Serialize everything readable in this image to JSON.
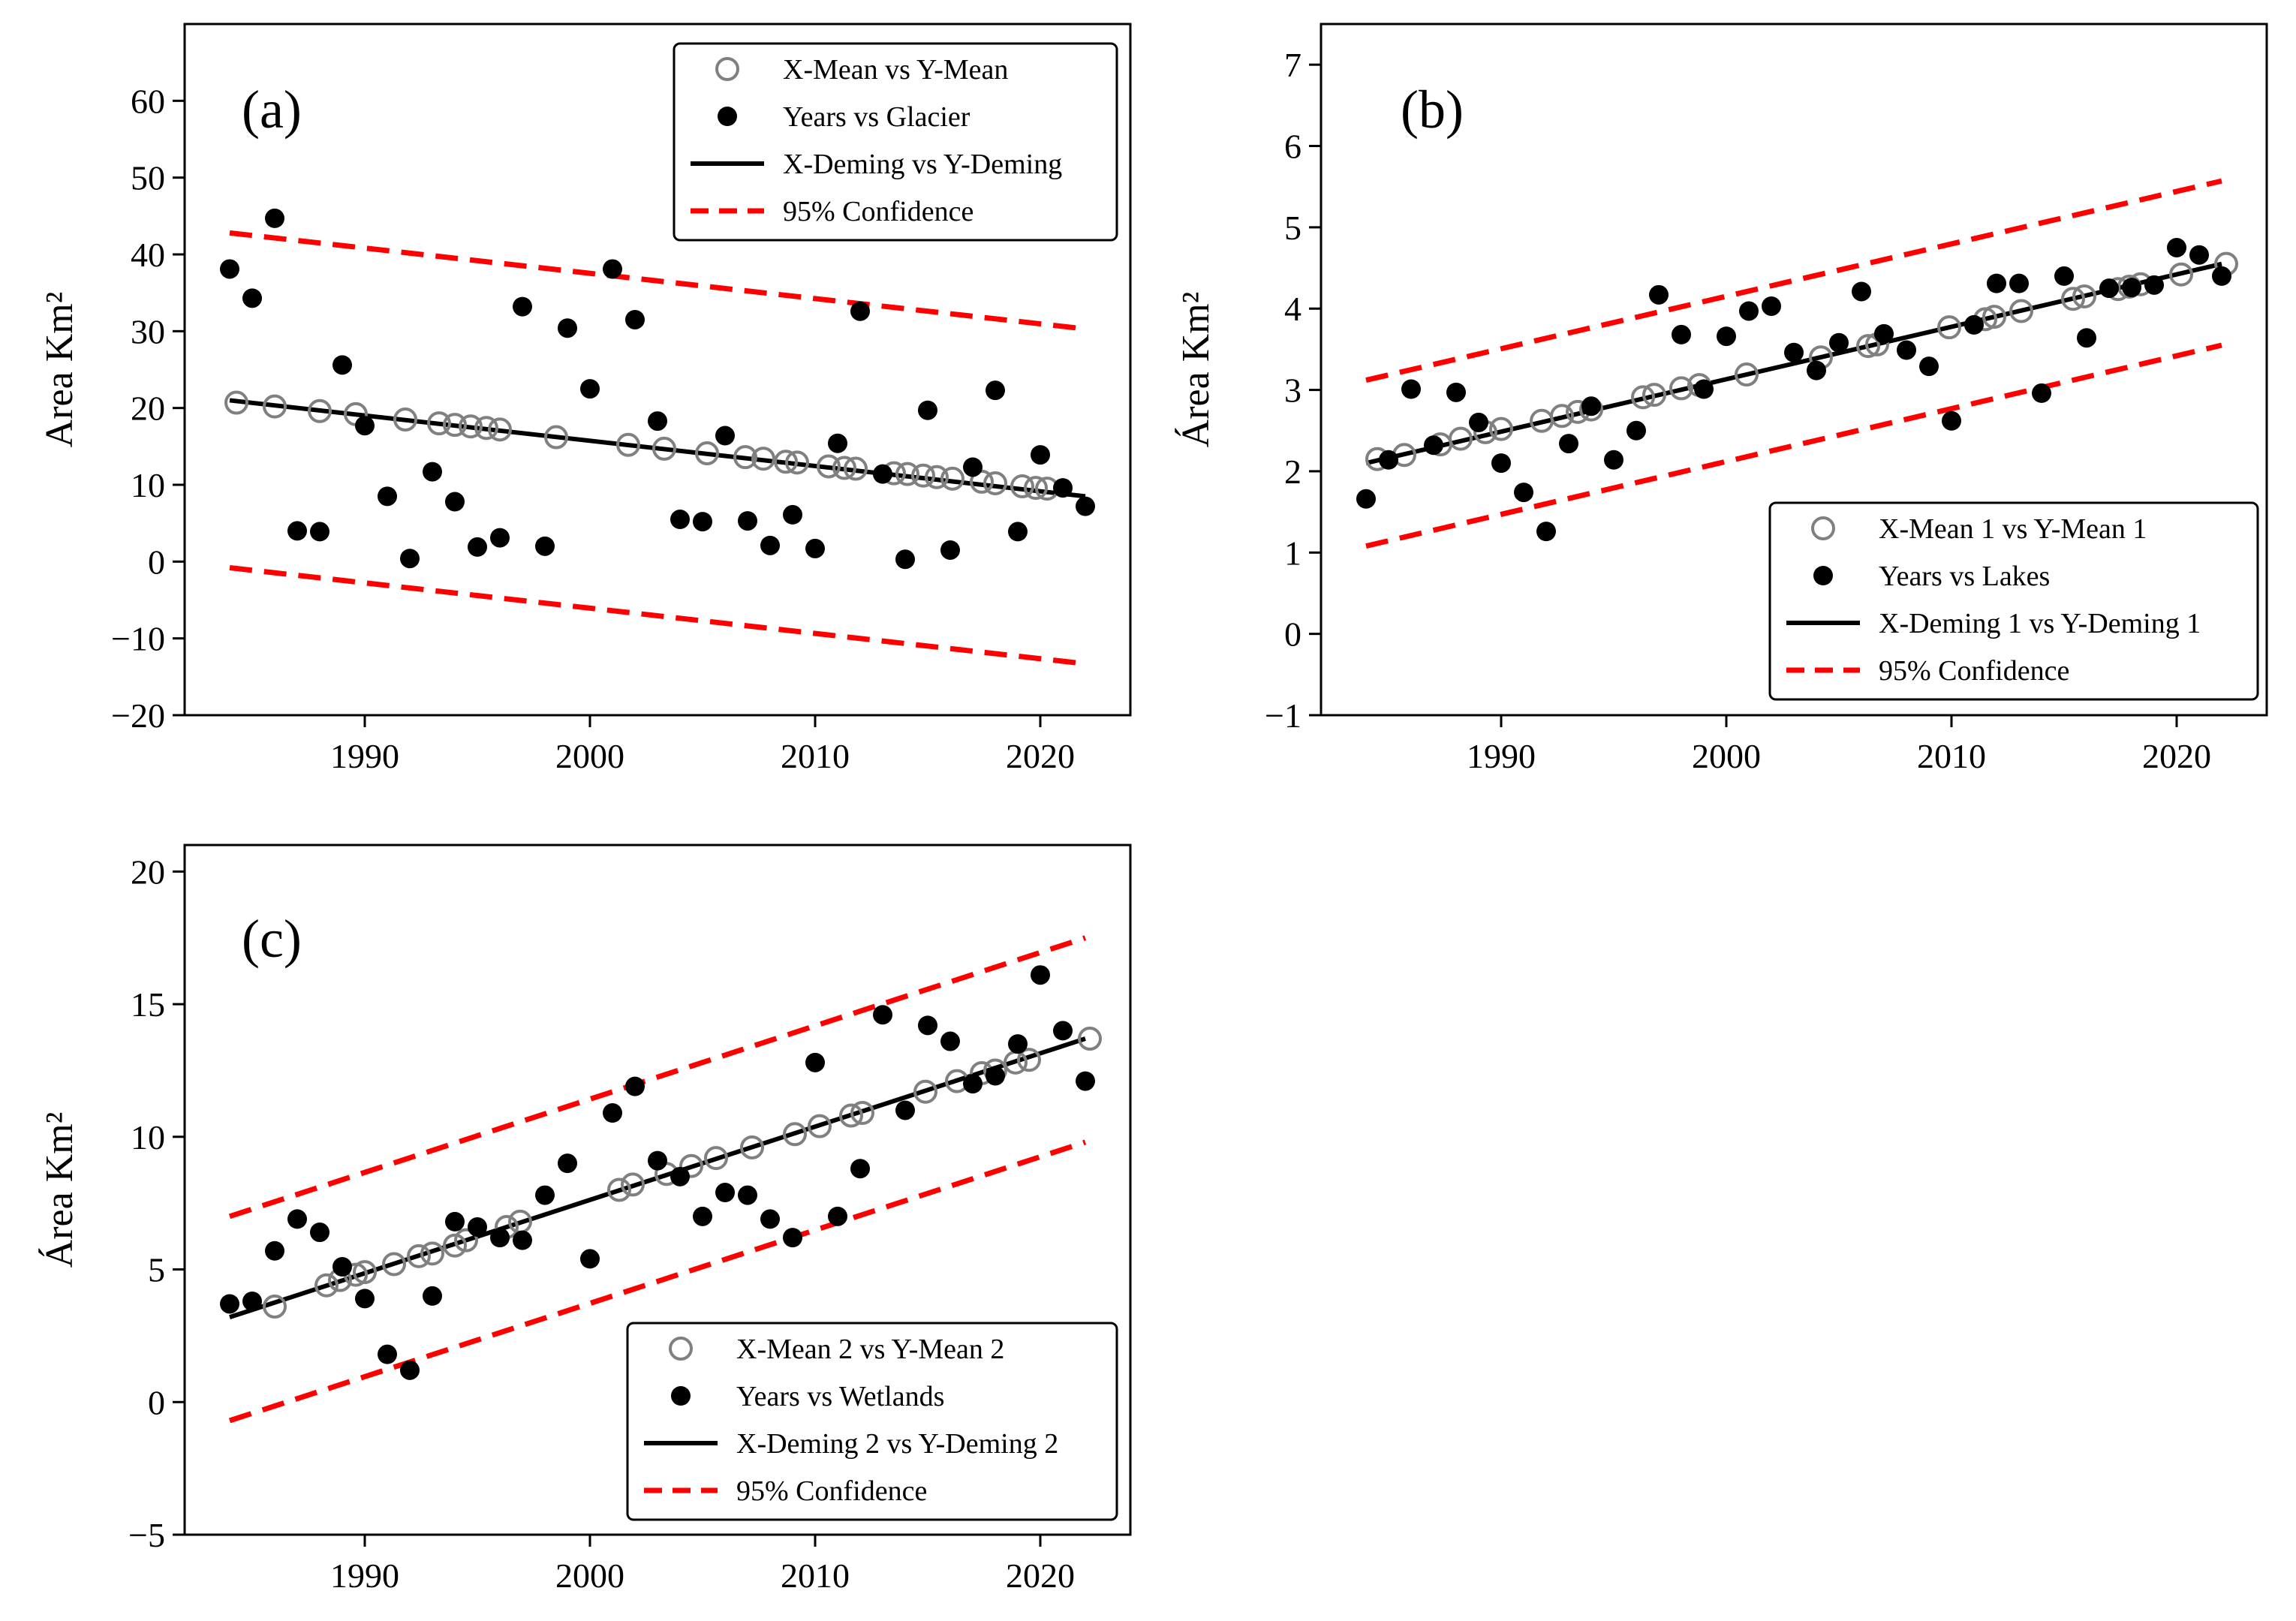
{
  "chart_data": [
    {
      "id": "a",
      "type": "scatter",
      "panel_label": "(a)",
      "ylabel": "Area Km²",
      "xlabel": "",
      "xlim": [
        1982,
        2024
      ],
      "ylim": [
        -20,
        70
      ],
      "xticks": [
        1990,
        2000,
        2010,
        2020
      ],
      "yticks": [
        -20,
        -10,
        0,
        10,
        20,
        30,
        40,
        50,
        60
      ],
      "legend_position": "top-right",
      "legend": [
        "X-Mean vs Y-Mean",
        "Years vs Glacier",
        "X-Deming vs Y-Deming",
        "95% Confidence"
      ],
      "colors": {
        "fit": "#000000",
        "confidence": "#ff0000",
        "mean_marker": "#808080",
        "points": "#000000"
      },
      "series": [
        {
          "name": "X-Mean vs Y-Mean",
          "kind": "open-circle",
          "x": [
            1984.3,
            1986,
            1988,
            1989.6,
            1991.8,
            1993.3,
            1994,
            1994.7,
            1995.4,
            1996,
            1998.5,
            2001.7,
            2003.3,
            2005.2,
            2006.9,
            2007.7,
            2008.7,
            2009.2,
            2010.6,
            2011.3,
            2011.8,
            2013.5,
            2014.1,
            2014.8,
            2015.4,
            2016.1,
            2017.4,
            2018,
            2019.2,
            2019.8,
            2020.3
          ],
          "y": [
            20.7,
            20.2,
            19.6,
            19.2,
            18.5,
            18,
            17.8,
            17.6,
            17.4,
            17.2,
            16.2,
            15.2,
            14.7,
            14.1,
            13.6,
            13.4,
            13,
            12.9,
            12.4,
            12.2,
            12.1,
            11.5,
            11.4,
            11.2,
            11,
            10.8,
            10.4,
            10.2,
            9.8,
            9.6,
            9.5
          ]
        },
        {
          "name": "Years vs Glacier",
          "kind": "filled-dot",
          "x": [
            1984,
            1985,
            1986,
            1987,
            1988,
            1989,
            1990,
            1991,
            1992,
            1993,
            1994,
            1995,
            1996,
            1997,
            1998,
            1999,
            2000,
            2001,
            2002,
            2003,
            2004,
            2005,
            2006,
            2007,
            2008,
            2009,
            2010,
            2011,
            2012,
            2013,
            2014,
            2015,
            2016,
            2017,
            2018,
            2019,
            2020,
            2021,
            2022
          ],
          "y": [
            38.1,
            34.3,
            44.7,
            4,
            3.9,
            25.6,
            17.7,
            8.5,
            0.4,
            11.7,
            7.8,
            1.9,
            3.1,
            33.2,
            2,
            30.4,
            22.5,
            38.1,
            31.5,
            18.3,
            5.5,
            5.2,
            16.4,
            5.3,
            2.1,
            6.1,
            1.7,
            15.4,
            32.6,
            11.4,
            0.3,
            19.7,
            1.5,
            12.3,
            22.3,
            3.9,
            13.9,
            9.6,
            7.2
          ]
        },
        {
          "name": "X-Deming vs Y-Deming",
          "kind": "line",
          "x": [
            1984,
            2022
          ],
          "y": [
            21,
            8.5
          ]
        },
        {
          "name": "95% Confidence",
          "kind": "dashed",
          "x": [
            1984,
            2022
          ],
          "y": [
            42.8,
            30.3
          ]
        },
        {
          "name": "95% Confidence",
          "kind": "dashed",
          "x": [
            1984,
            2022
          ],
          "y": [
            -0.8,
            -13.3
          ]
        }
      ]
    },
    {
      "id": "b",
      "type": "scatter",
      "panel_label": "(b)",
      "ylabel": "Área Km²",
      "xlabel": "",
      "xlim": [
        1982,
        2024
      ],
      "ylim": [
        -1,
        7.5
      ],
      "xticks": [
        1990,
        2000,
        2010,
        2020
      ],
      "yticks": [
        -1,
        0,
        1,
        2,
        3,
        4,
        5,
        6,
        7
      ],
      "legend_position": "bottom-right",
      "legend": [
        "X-Mean 1 vs Y-Mean 1",
        "Years vs Lakes",
        "X-Deming 1 vs Y-Deming 1",
        "95% Confidence"
      ],
      "colors": {
        "fit": "#000000",
        "confidence": "#ff0000",
        "mean_marker": "#808080",
        "points": "#000000"
      },
      "series": [
        {
          "name": "X-Mean 1 vs Y-Mean 1",
          "kind": "open-circle",
          "x": [
            1984.5,
            1985.7,
            1987.3,
            1988.2,
            1989.3,
            1990,
            1991.8,
            1992.7,
            1993.4,
            1994,
            1996.3,
            1996.8,
            1998,
            1998.8,
            2000.9,
            2004.2,
            2006.3,
            2006.7,
            2009.9,
            2011.5,
            2011.9,
            2013.1,
            2015.4,
            2015.9,
            2017.4,
            2017.9,
            2018.4,
            2020.2,
            2022.2
          ],
          "y": [
            2.15,
            2.2,
            2.33,
            2.4,
            2.48,
            2.52,
            2.62,
            2.68,
            2.73,
            2.76,
            2.91,
            2.94,
            3.02,
            3.06,
            3.19,
            3.4,
            3.54,
            3.56,
            3.77,
            3.87,
            3.9,
            3.97,
            4.12,
            4.15,
            4.24,
            4.27,
            4.3,
            4.42,
            4.55
          ]
        },
        {
          "name": "Years vs Lakes",
          "kind": "filled-dot",
          "x": [
            1984,
            1985,
            1986,
            1987,
            1988,
            1989,
            1990,
            1991,
            1992,
            1993,
            1994,
            1995,
            1996,
            1997,
            1998,
            1999,
            2000,
            2001,
            2002,
            2003,
            2004,
            2005,
            2006,
            2007,
            2008,
            2009,
            2010,
            2011,
            2012,
            2013,
            2014,
            2015,
            2016,
            2017,
            2018,
            2019,
            2020,
            2021,
            2022
          ],
          "y": [
            1.66,
            2.14,
            3.01,
            2.32,
            2.97,
            2.6,
            2.1,
            1.74,
            1.26,
            2.34,
            2.8,
            2.14,
            2.5,
            4.17,
            3.68,
            3.01,
            3.66,
            3.97,
            4.03,
            3.46,
            3.24,
            3.58,
            4.21,
            3.69,
            3.49,
            3.29,
            2.62,
            3.8,
            4.31,
            4.31,
            2.96,
            4.4,
            3.64,
            4.25,
            4.26,
            4.29,
            4.75,
            4.66,
            4.4
          ]
        },
        {
          "name": "X-Deming 1 vs Y-Deming 1",
          "kind": "line",
          "x": [
            1984,
            2022
          ],
          "y": [
            2.1,
            4.55
          ]
        },
        {
          "name": "95% Confidence",
          "kind": "dashed",
          "x": [
            1984,
            2022
          ],
          "y": [
            3.12,
            5.57
          ]
        },
        {
          "name": "95% Confidence",
          "kind": "dashed",
          "x": [
            1984,
            2022
          ],
          "y": [
            1.08,
            3.55
          ]
        }
      ]
    },
    {
      "id": "c",
      "type": "scatter",
      "panel_label": "(c)",
      "ylabel": "Área Km²",
      "xlabel": "",
      "xlim": [
        1982,
        2024
      ],
      "ylim": [
        -5,
        21
      ],
      "xticks": [
        1990,
        2000,
        2010,
        2020
      ],
      "yticks": [
        -5,
        0,
        5,
        10,
        15,
        20
      ],
      "legend_position": "bottom-right",
      "legend": [
        "X-Mean 2 vs Y-Mean 2",
        "Years vs Wetlands",
        "X-Deming 2 vs Y-Deming 2",
        "95% Confidence"
      ],
      "colors": {
        "fit": "#000000",
        "confidence": "#ff0000",
        "mean_marker": "#808080",
        "points": "#000000"
      },
      "series": [
        {
          "name": "X-Mean 2 vs Y-Mean 2",
          "kind": "open-circle",
          "x": [
            1986,
            1988.3,
            1988.9,
            1989.6,
            1990,
            1991.3,
            1992.4,
            1993,
            1994,
            1994.5,
            1996.3,
            1996.9,
            2001.3,
            2001.9,
            2003.4,
            2004.5,
            2005.6,
            2007.2,
            2009.1,
            2010.2,
            2011.6,
            2012.1,
            2014.9,
            2016.3,
            2017.4,
            2018,
            2018.9,
            2019.5,
            2022.2
          ],
          "y": [
            3.6,
            4.4,
            4.6,
            4.8,
            4.9,
            5.2,
            5.5,
            5.6,
            5.9,
            6.1,
            6.6,
            6.8,
            8.0,
            8.2,
            8.6,
            8.9,
            9.2,
            9.6,
            10.1,
            10.4,
            10.8,
            10.9,
            11.7,
            12.1,
            12.4,
            12.5,
            12.8,
            12.9,
            13.7
          ]
        },
        {
          "name": "Years vs Wetlands",
          "kind": "filled-dot",
          "x": [
            1984,
            1985,
            1986,
            1987,
            1988,
            1989,
            1990,
            1991,
            1992,
            1993,
            1994,
            1995,
            1996,
            1997,
            1998,
            1999,
            2000,
            2001,
            2002,
            2003,
            2004,
            2005,
            2006,
            2007,
            2008,
            2009,
            2010,
            2011,
            2012,
            2013,
            2014,
            2015,
            2016,
            2017,
            2018,
            2019,
            2020,
            2021,
            2022
          ],
          "y": [
            3.7,
            3.8,
            5.7,
            6.9,
            6.4,
            5.1,
            3.9,
            1.8,
            1.2,
            4.0,
            6.8,
            6.6,
            6.2,
            6.1,
            7.8,
            9.0,
            5.4,
            10.9,
            11.9,
            9.1,
            8.5,
            7.0,
            7.9,
            7.8,
            6.9,
            6.2,
            12.8,
            7.0,
            8.8,
            14.6,
            11.0,
            14.2,
            13.6,
            12.0,
            12.3,
            13.5,
            16.1,
            14.0,
            12.1
          ]
        },
        {
          "name": "X-Deming 2 vs Y-Deming 2",
          "kind": "line",
          "x": [
            1984,
            2022
          ],
          "y": [
            3.2,
            13.7
          ]
        },
        {
          "name": "95% Confidence",
          "kind": "dashed",
          "x": [
            1984,
            2022
          ],
          "y": [
            7.0,
            17.5
          ]
        },
        {
          "name": "95% Confidence",
          "kind": "dashed",
          "x": [
            1984,
            2022
          ],
          "y": [
            -0.7,
            9.8
          ]
        }
      ]
    }
  ]
}
